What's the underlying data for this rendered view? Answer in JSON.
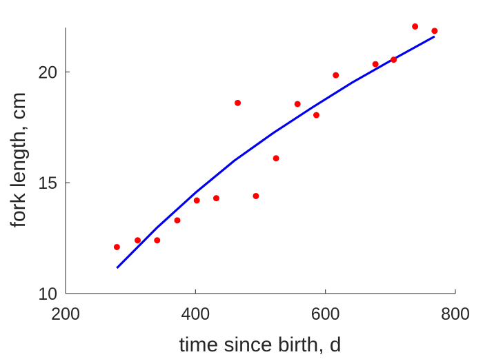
{
  "chart_data": {
    "type": "scatter",
    "title": "",
    "xlabel": "time since birth, d",
    "ylabel": "fork length, cm",
    "xlim": [
      200,
      800
    ],
    "ylim": [
      10,
      22
    ],
    "xticks": [
      200,
      400,
      600,
      800
    ],
    "yticks": [
      10,
      15,
      20
    ],
    "xtick_labels": [
      "200",
      "400",
      "600",
      "800"
    ],
    "ytick_labels": [
      "10",
      "15",
      "20"
    ],
    "grid": false,
    "series": [
      {
        "kind": "scatter",
        "color": "#ff0000",
        "points": [
          {
            "x": 279,
            "y": 12.1
          },
          {
            "x": 311,
            "y": 12.4
          },
          {
            "x": 341,
            "y": 12.4
          },
          {
            "x": 372,
            "y": 13.3
          },
          {
            "x": 402,
            "y": 14.2
          },
          {
            "x": 432,
            "y": 14.3
          },
          {
            "x": 465,
            "y": 18.6
          },
          {
            "x": 493,
            "y": 14.4
          },
          {
            "x": 524,
            "y": 16.1
          },
          {
            "x": 557,
            "y": 18.55
          },
          {
            "x": 586,
            "y": 18.05
          },
          {
            "x": 616,
            "y": 19.85
          },
          {
            "x": 677,
            "y": 20.35
          },
          {
            "x": 705,
            "y": 20.55
          },
          {
            "x": 738,
            "y": 22.05
          },
          {
            "x": 768,
            "y": 21.85
          }
        ]
      },
      {
        "kind": "line",
        "color": "#0000ee",
        "points": [
          {
            "x": 279,
            "y": 11.15
          },
          {
            "x": 340,
            "y": 12.95
          },
          {
            "x": 400,
            "y": 14.55
          },
          {
            "x": 460,
            "y": 16.0
          },
          {
            "x": 520,
            "y": 17.25
          },
          {
            "x": 580,
            "y": 18.4
          },
          {
            "x": 640,
            "y": 19.5
          },
          {
            "x": 700,
            "y": 20.5
          },
          {
            "x": 768,
            "y": 21.6
          }
        ]
      }
    ]
  }
}
